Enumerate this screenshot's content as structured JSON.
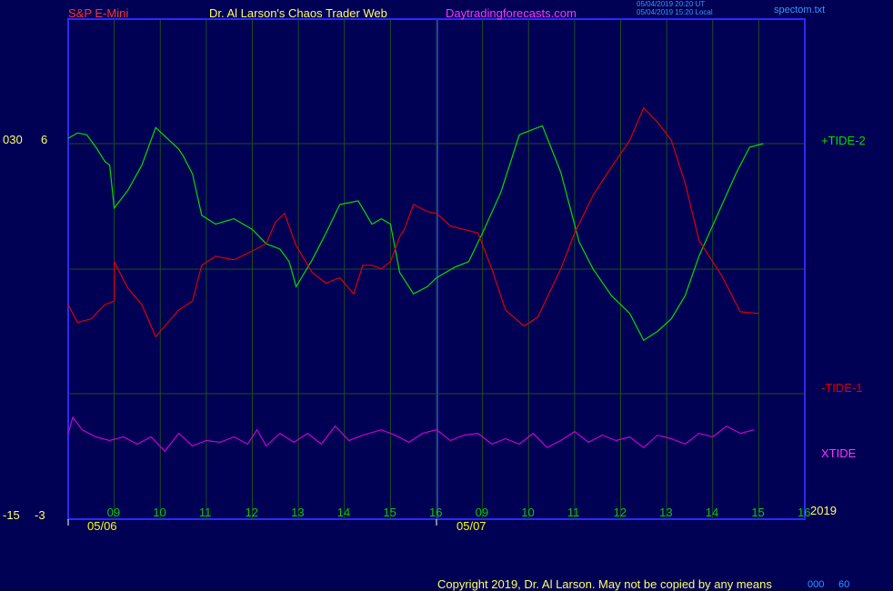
{
  "header": {
    "instrument": "S&P E-Mini",
    "author": "Dr. Al Larson's Chaos Trader Web",
    "site": "Daytradingforecasts.com",
    "timestamp_ut": "05/04/2019 20:20 UT",
    "timestamp_local": "05/04/2019 15:20 Local",
    "filename": "spectom.txt"
  },
  "left_axis": {
    "top_label_a": "030",
    "top_label_b": "6",
    "bottom_label_a": "-15",
    "bottom_label_b": "-3"
  },
  "right_labels": {
    "tide2": "+TIDE-2",
    "tide1": "-TIDE-1",
    "xtide": "XTIDE",
    "year": "2019"
  },
  "footer": {
    "copyright": "Copyright 2019, Dr. Al Larson. May not be copied by any means",
    "overlay_a": "000",
    "overlay_b": "60"
  },
  "colors": {
    "background": "#000055",
    "frame": "#2a2aff",
    "grid": "#1f4d1f",
    "tide2": "#00dd00",
    "tide1": "#dd0000",
    "xtide": "#cc00cc",
    "hour_labels": "#00cc00",
    "date_labels": "#ffff00",
    "header_instrument": "#ff3333",
    "header_author": "#ffff66",
    "header_site": "#ff33ff",
    "header_meta": "#3399ff"
  },
  "chart_data": {
    "type": "line",
    "x_tick_labels": [
      "09",
      "10",
      "11",
      "12",
      "13",
      "14",
      "15",
      "16",
      "09",
      "10",
      "11",
      "12",
      "13",
      "14",
      "15",
      "16"
    ],
    "date_labels": [
      "05/06",
      "05/07"
    ],
    "x_range": [
      0,
      16
    ],
    "series": [
      {
        "name": "+TIDE-2",
        "color": "#00dd00",
        "points": [
          [
            0,
            6.3
          ],
          [
            0.2,
            6.6
          ],
          [
            0.4,
            6.5
          ],
          [
            0.6,
            5.8
          ],
          [
            0.8,
            5.0
          ],
          [
            0.9,
            4.8
          ],
          [
            1.0,
            2.4
          ],
          [
            1.3,
            3.4
          ],
          [
            1.6,
            4.8
          ],
          [
            1.9,
            6.9
          ],
          [
            2.4,
            5.7
          ],
          [
            2.5,
            5.3
          ],
          [
            2.7,
            4.3
          ],
          [
            2.9,
            2.0
          ],
          [
            3.2,
            1.5
          ],
          [
            3.6,
            1.8
          ],
          [
            4.0,
            1.2
          ],
          [
            4.3,
            0.4
          ],
          [
            4.6,
            0.1
          ],
          [
            4.8,
            -0.6
          ],
          [
            4.95,
            -2.0
          ],
          [
            5.3,
            -0.5
          ],
          [
            5.6,
            1.0
          ],
          [
            5.9,
            2.6
          ],
          [
            6.3,
            2.8
          ],
          [
            6.6,
            1.5
          ],
          [
            6.8,
            1.8
          ],
          [
            7.0,
            1.5
          ],
          [
            7.2,
            -1.2
          ],
          [
            7.5,
            -2.4
          ],
          [
            7.8,
            -2.0
          ],
          [
            8.0,
            -1.5
          ],
          [
            8.4,
            -0.9
          ],
          [
            8.7,
            -0.6
          ],
          [
            9.0,
            1.0
          ],
          [
            9.4,
            3.3
          ],
          [
            9.8,
            6.5
          ],
          [
            10.3,
            7.0
          ],
          [
            10.7,
            4.4
          ],
          [
            11.1,
            0.5
          ],
          [
            11.4,
            -1.0
          ],
          [
            11.8,
            -2.5
          ],
          [
            12.2,
            -3.5
          ],
          [
            12.5,
            -5.0
          ],
          [
            12.8,
            -4.5
          ],
          [
            13.1,
            -3.8
          ],
          [
            13.4,
            -2.5
          ],
          [
            13.7,
            -0.3
          ],
          [
            14.1,
            2.0
          ],
          [
            14.5,
            4.3
          ],
          [
            14.8,
            5.8
          ],
          [
            15.1,
            6.0
          ]
        ]
      },
      {
        "name": "-TIDE-1",
        "color": "#dd0000",
        "points": [
          [
            0,
            -3.0
          ],
          [
            0.2,
            -4.0
          ],
          [
            0.5,
            -3.8
          ],
          [
            0.8,
            -3.0
          ],
          [
            1.0,
            -2.8
          ],
          [
            1.0,
            -0.6
          ],
          [
            1.3,
            -2.1
          ],
          [
            1.6,
            -3.0
          ],
          [
            1.9,
            -4.8
          ],
          [
            2.4,
            -3.3
          ],
          [
            2.7,
            -2.8
          ],
          [
            2.9,
            -0.8
          ],
          [
            3.2,
            -0.3
          ],
          [
            3.6,
            -0.5
          ],
          [
            4.0,
            0.0
          ],
          [
            4.3,
            0.4
          ],
          [
            4.5,
            1.6
          ],
          [
            4.7,
            2.1
          ],
          [
            4.95,
            0.3
          ],
          [
            5.3,
            -1.2
          ],
          [
            5.6,
            -1.8
          ],
          [
            5.9,
            -1.5
          ],
          [
            6.2,
            -2.4
          ],
          [
            6.4,
            -0.8
          ],
          [
            6.6,
            -0.8
          ],
          [
            6.8,
            -1.0
          ],
          [
            7.0,
            -0.6
          ],
          [
            7.2,
            0.8
          ],
          [
            7.3,
            1.2
          ],
          [
            7.5,
            2.6
          ],
          [
            7.8,
            2.2
          ],
          [
            8.0,
            2.1
          ],
          [
            8.3,
            1.4
          ],
          [
            8.6,
            1.2
          ],
          [
            8.9,
            1.0
          ],
          [
            9.2,
            -1.0
          ],
          [
            9.5,
            -3.3
          ],
          [
            9.9,
            -4.2
          ],
          [
            10.2,
            -3.7
          ],
          [
            10.7,
            -1.0
          ],
          [
            11.0,
            1.0
          ],
          [
            11.4,
            3.1
          ],
          [
            11.7,
            4.3
          ],
          [
            12.2,
            6.2
          ],
          [
            12.5,
            8.0
          ],
          [
            12.8,
            7.2
          ],
          [
            13.1,
            6.2
          ],
          [
            13.4,
            3.8
          ],
          [
            13.7,
            0.6
          ],
          [
            14.2,
            -1.4
          ],
          [
            14.6,
            -3.4
          ],
          [
            15.0,
            -3.5
          ]
        ]
      },
      {
        "name": "XTIDE",
        "color": "#cc00cc",
        "points": [
          [
            0,
            -10.2
          ],
          [
            0.1,
            -9.3
          ],
          [
            0.3,
            -10.0
          ],
          [
            0.6,
            -10.4
          ],
          [
            0.9,
            -10.6
          ],
          [
            1.2,
            -10.4
          ],
          [
            1.5,
            -10.8
          ],
          [
            1.8,
            -10.4
          ],
          [
            2.1,
            -11.2
          ],
          [
            2.4,
            -10.2
          ],
          [
            2.7,
            -10.9
          ],
          [
            3.0,
            -10.6
          ],
          [
            3.3,
            -10.7
          ],
          [
            3.6,
            -10.4
          ],
          [
            3.9,
            -10.8
          ],
          [
            4.1,
            -10.0
          ],
          [
            4.3,
            -10.9
          ],
          [
            4.6,
            -10.2
          ],
          [
            4.9,
            -10.7
          ],
          [
            5.2,
            -10.2
          ],
          [
            5.5,
            -10.8
          ],
          [
            5.8,
            -9.8
          ],
          [
            6.1,
            -10.6
          ],
          [
            6.4,
            -10.3
          ],
          [
            6.8,
            -10.0
          ],
          [
            7.1,
            -10.3
          ],
          [
            7.4,
            -10.7
          ],
          [
            7.7,
            -10.2
          ],
          [
            8.0,
            -10.0
          ],
          [
            8.3,
            -10.6
          ],
          [
            8.6,
            -10.3
          ],
          [
            8.9,
            -10.2
          ],
          [
            9.2,
            -10.8
          ],
          [
            9.5,
            -10.5
          ],
          [
            9.8,
            -10.8
          ],
          [
            10.1,
            -10.2
          ],
          [
            10.4,
            -11.0
          ],
          [
            10.7,
            -10.6
          ],
          [
            11.0,
            -10.1
          ],
          [
            11.3,
            -10.7
          ],
          [
            11.6,
            -10.3
          ],
          [
            11.9,
            -10.6
          ],
          [
            12.2,
            -10.4
          ],
          [
            12.5,
            -11.0
          ],
          [
            12.8,
            -10.3
          ],
          [
            13.1,
            -10.5
          ],
          [
            13.4,
            -10.8
          ],
          [
            13.7,
            -10.2
          ],
          [
            14.0,
            -10.4
          ],
          [
            14.3,
            -9.8
          ],
          [
            14.6,
            -10.2
          ],
          [
            14.9,
            -10.0
          ]
        ]
      }
    ]
  }
}
